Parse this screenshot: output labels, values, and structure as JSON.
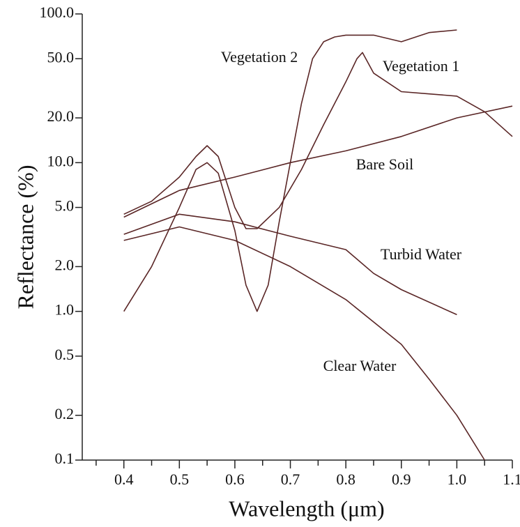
{
  "chart_data": {
    "type": "line",
    "xlabel": "Wavelength (μm)",
    "ylabel": "Reflectance (%)",
    "log_y": true,
    "xlim": [
      0.325,
      1.1
    ],
    "xticks": [
      0.4,
      0.5,
      0.6,
      0.7,
      0.8,
      0.9,
      {
        "value": 1,
        "label": "1.0"
      },
      1.1
    ],
    "xminorticks": [
      0.35,
      0.45,
      0.55,
      0.65,
      0.75,
      0.85,
      0.95,
      1.05
    ],
    "ylim": [
      0.1,
      100
    ],
    "yticks": [
      {
        "value": 0.1,
        "label": "0.1"
      },
      {
        "value": 0.2,
        "label": "0.2"
      },
      {
        "value": 0.5,
        "label": "0.5"
      },
      {
        "value": 1,
        "label": "1.0"
      },
      {
        "value": 2,
        "label": "2.0"
      },
      {
        "value": 5,
        "label": "5.0"
      },
      {
        "value": 10,
        "label": "10.0"
      },
      {
        "value": 20,
        "label": "20.0"
      },
      {
        "value": 50,
        "label": "50.0"
      },
      {
        "value": 100,
        "label": "100.0"
      }
    ],
    "series": [
      {
        "name": "Vegetation 2",
        "color": "#5a2626",
        "x": [
          0.4,
          0.45,
          0.5,
          0.53,
          0.55,
          0.57,
          0.6,
          0.62,
          0.64,
          0.66,
          0.68,
          0.7,
          0.72,
          0.74,
          0.76,
          0.78,
          0.8,
          0.85,
          0.9,
          0.95,
          1.0
        ],
        "values": [
          1.0,
          2.0,
          5.0,
          9.0,
          10.0,
          8.5,
          3.5,
          1.5,
          1.0,
          1.5,
          4.0,
          10.0,
          25,
          50,
          65,
          70,
          72,
          72,
          65,
          75,
          78
        ]
      },
      {
        "name": "Vegetation 1",
        "color": "#5a2626",
        "x": [
          0.4,
          0.45,
          0.5,
          0.53,
          0.55,
          0.57,
          0.6,
          0.62,
          0.64,
          0.68,
          0.72,
          0.76,
          0.8,
          0.82,
          0.83,
          0.85,
          0.9,
          0.95,
          1.0,
          1.05,
          1.1
        ],
        "values": [
          4.5,
          5.5,
          8,
          11,
          13,
          11,
          5,
          3.6,
          3.6,
          5,
          9,
          18,
          35,
          50,
          55,
          40,
          30,
          29,
          28,
          22,
          15
        ]
      },
      {
        "name": "Bare Soil",
        "color": "#5a2626",
        "x": [
          0.4,
          0.5,
          0.6,
          0.7,
          0.8,
          0.9,
          1.0,
          1.1
        ],
        "values": [
          4.3,
          6.5,
          8.0,
          10,
          12,
          15,
          20,
          24
        ]
      },
      {
        "name": "Turbid Water",
        "color": "#5a2626",
        "x": [
          0.4,
          0.5,
          0.6,
          0.7,
          0.8,
          0.85,
          0.9,
          1.0
        ],
        "values": [
          3.3,
          4.5,
          4.0,
          3.2,
          2.6,
          1.8,
          1.4,
          0.95
        ]
      },
      {
        "name": "Clear Water",
        "color": "#5a2626",
        "x": [
          0.4,
          0.5,
          0.6,
          0.7,
          0.8,
          0.9,
          0.95,
          1.0,
          1.05
        ],
        "values": [
          3.0,
          3.7,
          3.0,
          2.0,
          1.2,
          0.6,
          0.35,
          0.2,
          0.1
        ]
      }
    ]
  }
}
